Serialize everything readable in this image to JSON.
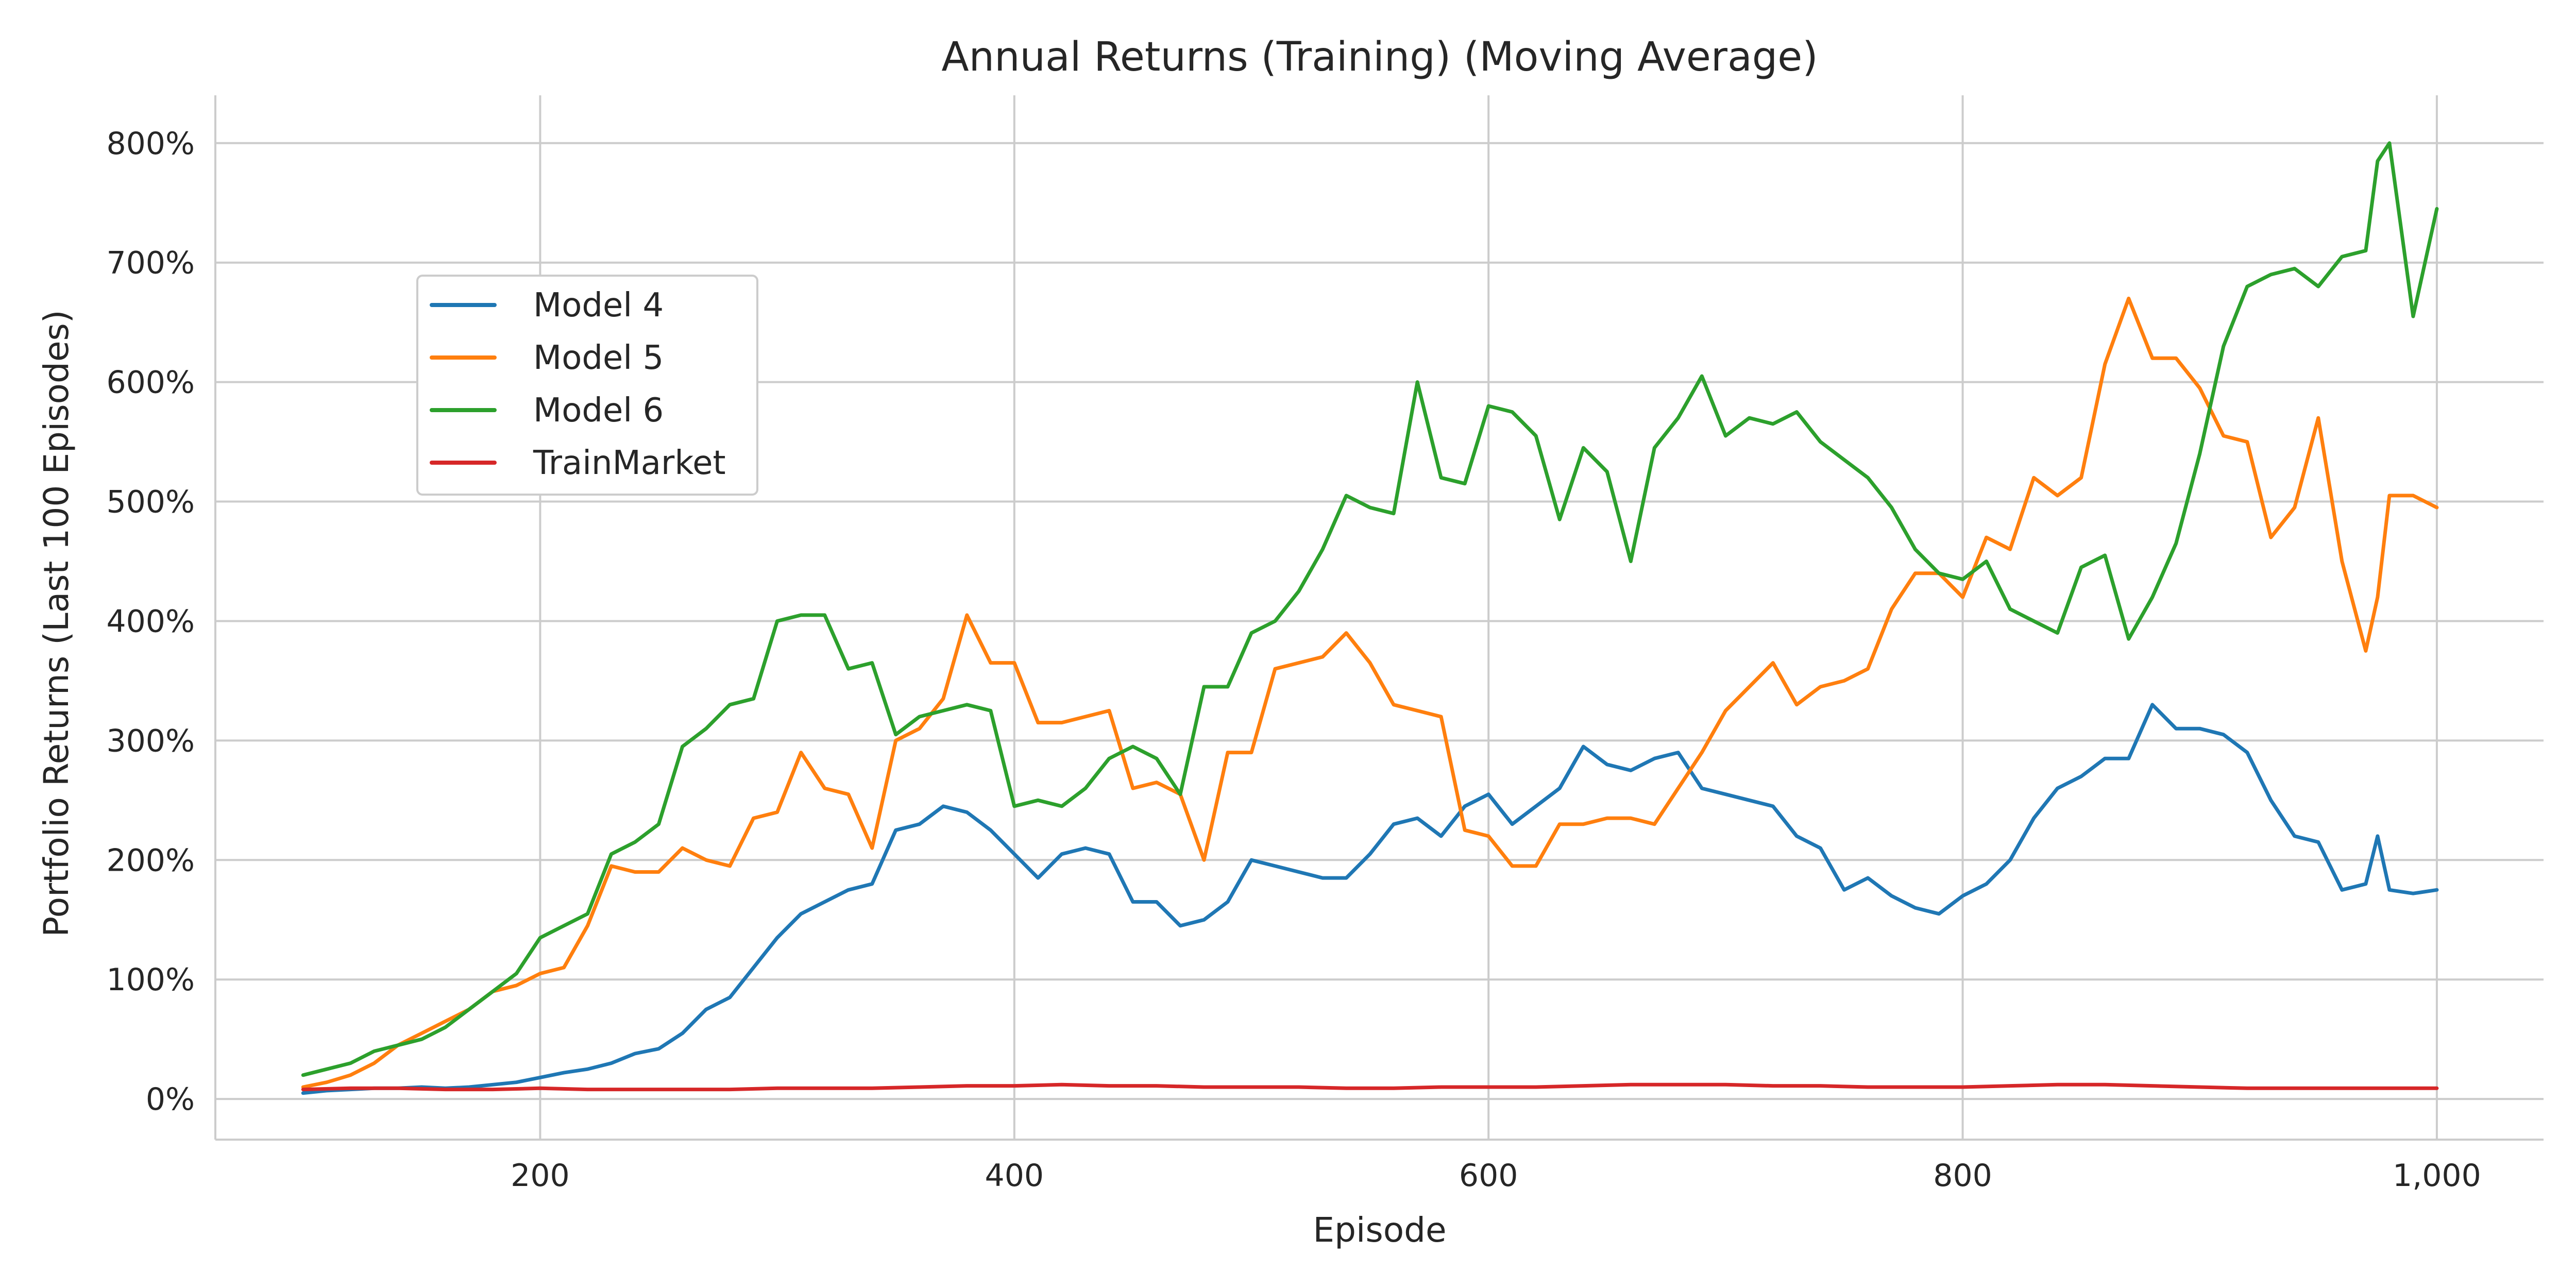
{
  "chart_data": {
    "type": "line",
    "title": "Annual Returns (Training) (Moving Average)",
    "xlabel": "Episode",
    "ylabel": "Portfolio Returns (Last 100 Episodes)",
    "xlim": [
      63,
      1045
    ],
    "ylim": [
      -0.34,
      8.4
    ],
    "x_ticks": [
      200,
      400,
      600,
      800,
      1000
    ],
    "x_tick_labels": [
      "200",
      "400",
      "600",
      "800",
      "1,000"
    ],
    "y_ticks": [
      0,
      1,
      2,
      3,
      4,
      5,
      6,
      7,
      8
    ],
    "y_tick_labels": [
      "0%",
      "100%",
      "200%",
      "300%",
      "400%",
      "500%",
      "600%",
      "700%",
      "800%"
    ],
    "grid": true,
    "legend_position": "upper-left",
    "series": [
      {
        "name": "Model 4",
        "color": "#1f77b4",
        "x": [
          100,
          110,
          120,
          130,
          140,
          150,
          160,
          170,
          180,
          190,
          200,
          210,
          220,
          230,
          240,
          250,
          260,
          270,
          280,
          290,
          300,
          310,
          320,
          330,
          340,
          350,
          360,
          370,
          380,
          390,
          400,
          410,
          420,
          430,
          440,
          450,
          460,
          470,
          480,
          490,
          500,
          510,
          520,
          530,
          540,
          550,
          560,
          570,
          580,
          590,
          600,
          610,
          620,
          630,
          640,
          650,
          660,
          670,
          680,
          690,
          700,
          710,
          720,
          730,
          740,
          750,
          760,
          770,
          780,
          790,
          800,
          810,
          820,
          830,
          840,
          850,
          860,
          870,
          880,
          890,
          900,
          910,
          920,
          930,
          940,
          950,
          960,
          970,
          975,
          980,
          990,
          1000
        ],
        "y": [
          0.05,
          0.07,
          0.08,
          0.09,
          0.09,
          0.1,
          0.09,
          0.1,
          0.12,
          0.14,
          0.18,
          0.22,
          0.25,
          0.3,
          0.38,
          0.42,
          0.55,
          0.75,
          0.85,
          1.1,
          1.35,
          1.55,
          1.65,
          1.75,
          1.8,
          2.25,
          2.3,
          2.45,
          2.4,
          2.25,
          2.05,
          1.85,
          2.05,
          2.1,
          2.05,
          1.65,
          1.65,
          1.45,
          1.5,
          1.65,
          2.0,
          1.95,
          1.9,
          1.85,
          1.85,
          2.05,
          2.3,
          2.35,
          2.2,
          2.45,
          2.55,
          2.3,
          2.45,
          2.6,
          2.95,
          2.8,
          2.75,
          2.85,
          2.9,
          2.6,
          2.55,
          2.5,
          2.45,
          2.2,
          2.1,
          1.75,
          1.85,
          1.7,
          1.6,
          1.55,
          1.7,
          1.8,
          2.0,
          2.35,
          2.6,
          2.7,
          2.85,
          2.85,
          3.3,
          3.1,
          3.1,
          3.05,
          2.9,
          2.5,
          2.2,
          2.15,
          1.75,
          1.8,
          2.2,
          1.75,
          1.72,
          1.75
        ]
      },
      {
        "name": "Model 5",
        "color": "#ff7f0e",
        "x": [
          100,
          110,
          120,
          130,
          140,
          150,
          160,
          170,
          180,
          190,
          200,
          210,
          220,
          230,
          240,
          250,
          260,
          270,
          280,
          290,
          300,
          310,
          320,
          330,
          340,
          350,
          360,
          370,
          380,
          390,
          400,
          410,
          420,
          430,
          440,
          450,
          460,
          470,
          480,
          490,
          500,
          510,
          520,
          530,
          540,
          550,
          560,
          570,
          580,
          590,
          600,
          610,
          620,
          630,
          640,
          650,
          660,
          670,
          680,
          690,
          700,
          710,
          720,
          730,
          740,
          750,
          760,
          770,
          780,
          790,
          800,
          810,
          820,
          830,
          840,
          850,
          860,
          870,
          880,
          890,
          900,
          910,
          920,
          930,
          940,
          950,
          960,
          970,
          975,
          980,
          990,
          1000
        ],
        "y": [
          0.1,
          0.14,
          0.2,
          0.3,
          0.45,
          0.55,
          0.65,
          0.75,
          0.9,
          0.95,
          1.05,
          1.1,
          1.45,
          1.95,
          1.9,
          1.9,
          2.1,
          2.0,
          1.95,
          2.35,
          2.4,
          2.9,
          2.6,
          2.55,
          2.1,
          3.0,
          3.1,
          3.35,
          4.05,
          3.65,
          3.65,
          3.15,
          3.15,
          3.2,
          3.25,
          2.6,
          2.65,
          2.55,
          2.0,
          2.9,
          2.9,
          3.6,
          3.65,
          3.7,
          3.9,
          3.65,
          3.3,
          3.25,
          3.2,
          2.25,
          2.2,
          1.95,
          1.95,
          2.3,
          2.3,
          2.35,
          2.35,
          2.3,
          2.6,
          2.9,
          3.25,
          3.45,
          3.65,
          3.3,
          3.45,
          3.5,
          3.6,
          4.1,
          4.4,
          4.4,
          4.2,
          4.7,
          4.6,
          5.2,
          5.05,
          5.2,
          6.15,
          6.7,
          6.2,
          6.2,
          5.95,
          5.55,
          5.5,
          4.7,
          4.95,
          5.7,
          4.5,
          3.75,
          4.2,
          5.05,
          5.05,
          4.95
        ]
      },
      {
        "name": "Model 6",
        "color": "#2ca02c",
        "x": [
          100,
          110,
          120,
          130,
          140,
          150,
          160,
          170,
          180,
          190,
          200,
          210,
          220,
          230,
          240,
          250,
          260,
          270,
          280,
          290,
          300,
          310,
          320,
          330,
          340,
          350,
          360,
          370,
          380,
          390,
          400,
          410,
          420,
          430,
          440,
          450,
          460,
          470,
          480,
          490,
          500,
          510,
          520,
          530,
          540,
          550,
          560,
          570,
          580,
          590,
          600,
          610,
          620,
          630,
          640,
          650,
          660,
          670,
          680,
          690,
          700,
          710,
          720,
          730,
          740,
          750,
          760,
          770,
          780,
          790,
          800,
          810,
          820,
          830,
          840,
          850,
          860,
          870,
          880,
          890,
          900,
          910,
          920,
          930,
          940,
          950,
          960,
          970,
          975,
          980,
          990,
          1000
        ],
        "y": [
          0.2,
          0.25,
          0.3,
          0.4,
          0.45,
          0.5,
          0.6,
          0.75,
          0.9,
          1.05,
          1.35,
          1.45,
          1.55,
          2.05,
          2.15,
          2.3,
          2.95,
          3.1,
          3.3,
          3.35,
          4.0,
          4.05,
          4.05,
          3.6,
          3.65,
          3.05,
          3.2,
          3.25,
          3.3,
          3.25,
          2.45,
          2.5,
          2.45,
          2.6,
          2.85,
          2.95,
          2.85,
          2.55,
          3.45,
          3.45,
          3.9,
          4.0,
          4.25,
          4.6,
          5.05,
          4.95,
          4.9,
          6.0,
          5.2,
          5.15,
          5.8,
          5.75,
          5.55,
          4.85,
          5.45,
          5.25,
          4.5,
          5.45,
          5.7,
          6.05,
          5.55,
          5.7,
          5.65,
          5.75,
          5.5,
          5.35,
          5.2,
          4.95,
          4.6,
          4.4,
          4.35,
          4.5,
          4.1,
          4.0,
          3.9,
          4.45,
          4.55,
          3.85,
          4.2,
          4.65,
          5.4,
          6.3,
          6.8,
          6.9,
          6.95,
          6.8,
          7.05,
          7.1,
          7.85,
          8.0,
          6.55,
          7.45
        ]
      },
      {
        "name": "TrainMarket",
        "color": "#d62728",
        "x": [
          100,
          120,
          140,
          160,
          180,
          200,
          220,
          240,
          260,
          280,
          300,
          320,
          340,
          360,
          380,
          400,
          420,
          440,
          460,
          480,
          500,
          520,
          540,
          560,
          580,
          600,
          620,
          640,
          660,
          680,
          700,
          720,
          740,
          760,
          780,
          800,
          820,
          840,
          860,
          880,
          900,
          920,
          940,
          960,
          980,
          1000
        ],
        "y": [
          0.08,
          0.09,
          0.09,
          0.08,
          0.08,
          0.09,
          0.08,
          0.08,
          0.08,
          0.08,
          0.09,
          0.09,
          0.09,
          0.1,
          0.11,
          0.11,
          0.12,
          0.11,
          0.11,
          0.1,
          0.1,
          0.1,
          0.09,
          0.09,
          0.1,
          0.1,
          0.1,
          0.11,
          0.12,
          0.12,
          0.12,
          0.11,
          0.11,
          0.1,
          0.1,
          0.1,
          0.11,
          0.12,
          0.12,
          0.11,
          0.1,
          0.09,
          0.09,
          0.09,
          0.09,
          0.09
        ]
      }
    ]
  }
}
